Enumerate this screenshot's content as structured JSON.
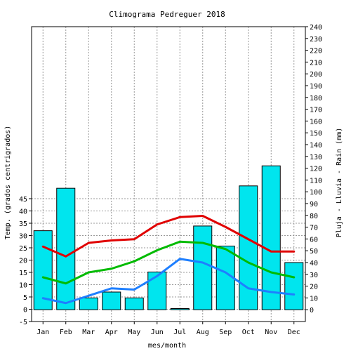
{
  "chart_data": {
    "type": "bar",
    "title": "Climograma Pedreguer 2018",
    "xlabel": "mes/month",
    "ylabel_left": "Temp. (grados centrigrados)",
    "ylabel_right": "Pluja - Lluvia - Rain (mm)",
    "categories": [
      "Jan",
      "Feb",
      "Mar",
      "Apr",
      "May",
      "Jun",
      "Jul",
      "Aug",
      "Sep",
      "Oct",
      "Nov",
      "Dec"
    ],
    "left_axis": {
      "ylim": [
        -5,
        115
      ],
      "ticks": [
        -5,
        0,
        5,
        10,
        15,
        20,
        25,
        30,
        35,
        40,
        45
      ]
    },
    "right_axis": {
      "ylim": [
        -10,
        240
      ],
      "ticks": [
        0,
        10,
        20,
        30,
        40,
        50,
        60,
        70,
        80,
        90,
        100,
        110,
        120,
        130,
        140,
        150,
        160,
        170,
        180,
        190,
        200,
        210,
        220,
        230,
        240
      ]
    },
    "grid": true,
    "bar_series": {
      "axis": "right",
      "color": "#00e5ee",
      "values": [
        67,
        103,
        10,
        15,
        10,
        32,
        1,
        71,
        54,
        105,
        122,
        40
      ]
    },
    "line_series": [
      {
        "axis": "left",
        "color": "#e00000",
        "values": [
          25.5,
          21.5,
          27,
          28,
          28.5,
          34.5,
          37.5,
          38,
          33.5,
          28.5,
          23.5,
          23.5
        ]
      },
      {
        "axis": "left",
        "color": "#00bb00",
        "values": [
          13,
          10.5,
          15,
          16.5,
          19.5,
          24,
          27.5,
          27,
          24.5,
          19,
          15,
          13
        ]
      },
      {
        "axis": "left",
        "color": "#1e7fff",
        "values": [
          4.5,
          2.5,
          5.5,
          8.5,
          8,
          13.5,
          20.5,
          19,
          15,
          8.5,
          7,
          6
        ]
      }
    ]
  }
}
